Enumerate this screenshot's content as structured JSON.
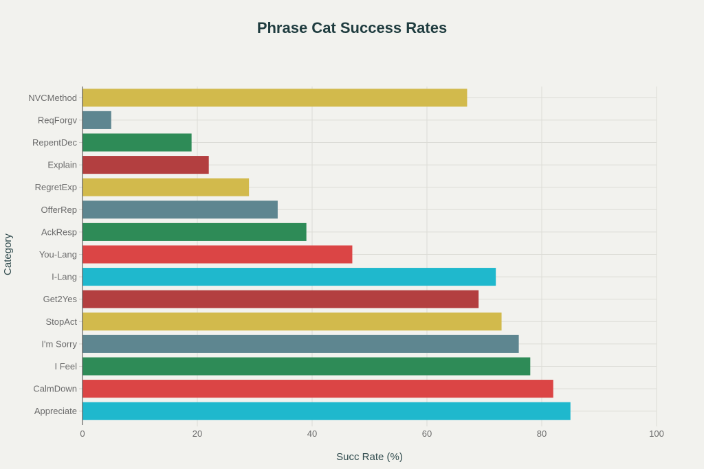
{
  "chart_data": {
    "type": "bar",
    "orientation": "horizontal",
    "title": "Phrase Cat Success Rates",
    "xlabel": "Succ Rate (%)",
    "ylabel": "Category",
    "xlim": [
      0,
      100
    ],
    "xticks": [
      0,
      20,
      40,
      60,
      80,
      100
    ],
    "grid": true,
    "categories": [
      "NVCMethod",
      "ReqForgv",
      "RepentDec",
      "Explain",
      "RegretExp",
      "OfferRep",
      "AckResp",
      "You-Lang",
      "I-Lang",
      "Get2Yes",
      "StopAct",
      "I'm Sorry",
      "I Feel",
      "CalmDown",
      "Appreciate"
    ],
    "values": [
      67,
      5,
      19,
      22,
      29,
      34,
      39,
      47,
      72,
      69,
      73,
      76,
      78,
      82,
      85
    ],
    "colors": [
      "#d2ba4c",
      "#5e8690",
      "#2e8b57",
      "#b33f40",
      "#d2ba4c",
      "#5e8690",
      "#2e8b57",
      "#db4545",
      "#1fb8cd",
      "#b33f40",
      "#d2ba4c",
      "#5e8690",
      "#2e8b57",
      "#db4545",
      "#1fb8cd"
    ]
  }
}
